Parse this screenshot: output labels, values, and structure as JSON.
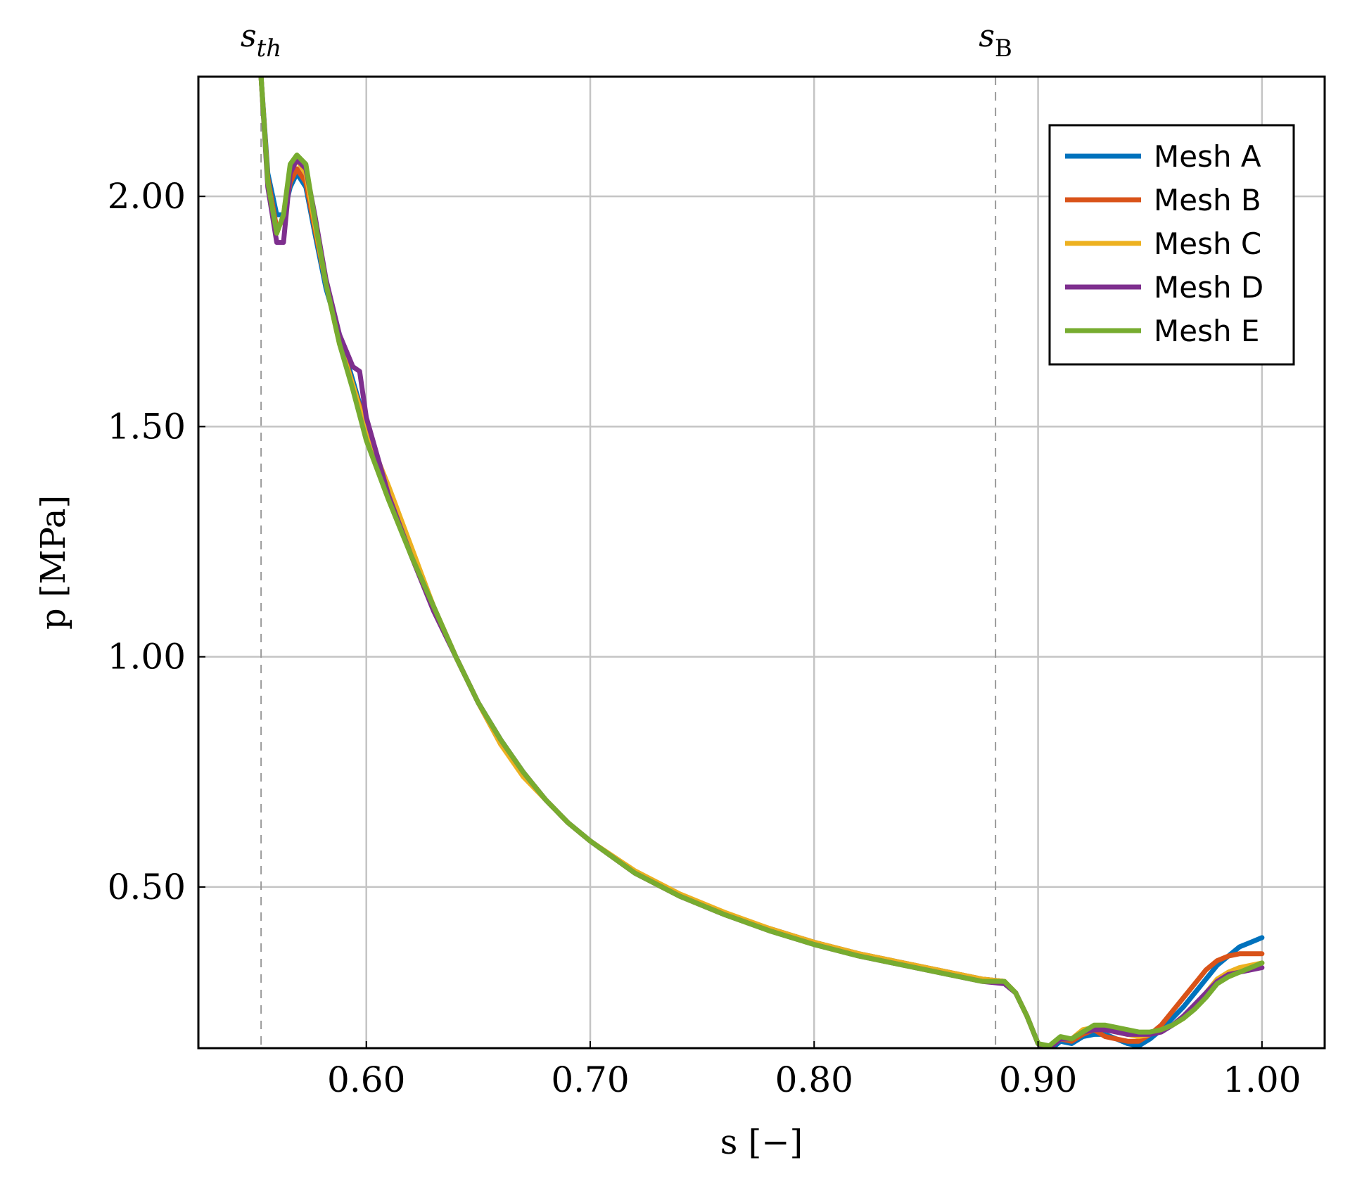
{
  "chart_data": {
    "type": "line",
    "xlabel": "s [−]",
    "ylabel": "p [MPa]",
    "xlim": [
      0.525,
      1.028
    ],
    "ylim": [
      0.15,
      2.26
    ],
    "xticks": [
      0.6,
      0.7,
      0.8,
      0.9,
      1.0
    ],
    "xtick_labels": [
      "0.60",
      "0.70",
      "0.80",
      "0.90",
      "1.00"
    ],
    "yticks": [
      0.5,
      1.0,
      1.5,
      2.0
    ],
    "ytick_labels": [
      "0.50",
      "1.00",
      "1.50",
      "2.00"
    ],
    "grid": true,
    "legend_position": "top-right",
    "markers": [
      {
        "label": "s",
        "sub": "th",
        "x": 0.553
      },
      {
        "label": "s",
        "sub": "B",
        "x": 0.881
      }
    ],
    "series": [
      {
        "name": "Mesh A",
        "color": "#0072BD",
        "x": [
          0.553,
          0.556,
          0.56,
          0.563,
          0.566,
          0.569,
          0.573,
          0.577,
          0.582,
          0.588,
          0.594,
          0.6,
          0.61,
          0.62,
          0.63,
          0.64,
          0.65,
          0.66,
          0.67,
          0.68,
          0.69,
          0.7,
          0.72,
          0.74,
          0.76,
          0.78,
          0.8,
          0.82,
          0.84,
          0.86,
          0.875,
          0.885,
          0.89,
          0.895,
          0.9,
          0.905,
          0.91,
          0.915,
          0.92,
          0.925,
          0.93,
          0.935,
          0.94,
          0.945,
          0.95,
          0.955,
          0.96,
          0.965,
          0.97,
          0.975,
          0.98,
          0.985,
          0.99,
          0.995,
          1.0
        ],
        "y": [
          2.26,
          2.05,
          1.96,
          1.96,
          2.02,
          2.05,
          2.02,
          1.92,
          1.8,
          1.7,
          1.6,
          1.5,
          1.35,
          1.23,
          1.11,
          1.0,
          0.9,
          0.82,
          0.75,
          0.69,
          0.64,
          0.6,
          0.53,
          0.48,
          0.44,
          0.41,
          0.38,
          0.355,
          0.335,
          0.315,
          0.3,
          0.295,
          0.27,
          0.22,
          0.16,
          0.145,
          0.165,
          0.16,
          0.175,
          0.18,
          0.18,
          0.17,
          0.16,
          0.155,
          0.17,
          0.19,
          0.215,
          0.24,
          0.27,
          0.3,
          0.33,
          0.35,
          0.37,
          0.38,
          0.39
        ]
      },
      {
        "name": "Mesh B",
        "color": "#D95319",
        "x": [
          0.553,
          0.556,
          0.56,
          0.563,
          0.566,
          0.569,
          0.573,
          0.577,
          0.582,
          0.588,
          0.594,
          0.6,
          0.61,
          0.62,
          0.63,
          0.64,
          0.65,
          0.66,
          0.67,
          0.68,
          0.69,
          0.7,
          0.72,
          0.74,
          0.76,
          0.78,
          0.8,
          0.82,
          0.84,
          0.86,
          0.875,
          0.885,
          0.89,
          0.895,
          0.9,
          0.905,
          0.91,
          0.915,
          0.92,
          0.925,
          0.93,
          0.935,
          0.94,
          0.945,
          0.95,
          0.955,
          0.96,
          0.965,
          0.97,
          0.975,
          0.98,
          0.985,
          0.99,
          0.995,
          1.0
        ],
        "y": [
          2.26,
          2.04,
          1.93,
          1.95,
          2.03,
          2.06,
          2.03,
          1.93,
          1.81,
          1.69,
          1.59,
          1.5,
          1.36,
          1.23,
          1.11,
          1.0,
          0.9,
          0.81,
          0.75,
          0.69,
          0.64,
          0.6,
          0.53,
          0.48,
          0.44,
          0.41,
          0.38,
          0.355,
          0.335,
          0.315,
          0.3,
          0.295,
          0.27,
          0.22,
          0.16,
          0.15,
          0.17,
          0.165,
          0.18,
          0.19,
          0.175,
          0.17,
          0.165,
          0.165,
          0.18,
          0.2,
          0.23,
          0.26,
          0.29,
          0.32,
          0.34,
          0.35,
          0.355,
          0.355,
          0.355
        ]
      },
      {
        "name": "Mesh C",
        "color": "#EDB120",
        "x": [
          0.553,
          0.556,
          0.56,
          0.563,
          0.566,
          0.569,
          0.573,
          0.577,
          0.582,
          0.588,
          0.594,
          0.6,
          0.61,
          0.62,
          0.63,
          0.64,
          0.65,
          0.66,
          0.67,
          0.68,
          0.69,
          0.7,
          0.72,
          0.74,
          0.76,
          0.78,
          0.8,
          0.82,
          0.84,
          0.86,
          0.875,
          0.885,
          0.89,
          0.895,
          0.9,
          0.905,
          0.91,
          0.915,
          0.92,
          0.925,
          0.93,
          0.935,
          0.94,
          0.945,
          0.95,
          0.955,
          0.96,
          0.965,
          0.97,
          0.975,
          0.98,
          0.985,
          0.99,
          0.995,
          1.0
        ],
        "y": [
          2.26,
          2.03,
          1.92,
          1.96,
          2.06,
          2.08,
          2.05,
          1.94,
          1.81,
          1.68,
          1.59,
          1.49,
          1.37,
          1.24,
          1.11,
          1.0,
          0.9,
          0.81,
          0.74,
          0.69,
          0.64,
          0.6,
          0.535,
          0.485,
          0.445,
          0.41,
          0.38,
          0.355,
          0.335,
          0.315,
          0.3,
          0.295,
          0.27,
          0.22,
          0.16,
          0.15,
          0.17,
          0.17,
          0.19,
          0.195,
          0.19,
          0.185,
          0.18,
          0.175,
          0.18,
          0.19,
          0.2,
          0.215,
          0.24,
          0.27,
          0.3,
          0.315,
          0.325,
          0.33,
          0.335
        ]
      },
      {
        "name": "Mesh D",
        "color": "#7E2F8E",
        "x": [
          0.553,
          0.556,
          0.56,
          0.563,
          0.566,
          0.569,
          0.573,
          0.577,
          0.582,
          0.588,
          0.594,
          0.597,
          0.6,
          0.61,
          0.62,
          0.63,
          0.64,
          0.65,
          0.66,
          0.67,
          0.68,
          0.69,
          0.7,
          0.72,
          0.74,
          0.76,
          0.78,
          0.8,
          0.82,
          0.84,
          0.86,
          0.875,
          0.885,
          0.89,
          0.895,
          0.9,
          0.905,
          0.91,
          0.915,
          0.92,
          0.925,
          0.93,
          0.935,
          0.94,
          0.945,
          0.95,
          0.955,
          0.96,
          0.965,
          0.97,
          0.975,
          0.98,
          0.985,
          0.99,
          0.995,
          1.0
        ],
        "y": [
          2.26,
          2.02,
          1.9,
          1.9,
          2.05,
          2.08,
          2.06,
          1.96,
          1.82,
          1.7,
          1.63,
          1.62,
          1.52,
          1.35,
          1.22,
          1.1,
          1.0,
          0.9,
          0.82,
          0.75,
          0.69,
          0.64,
          0.6,
          0.53,
          0.48,
          0.44,
          0.405,
          0.375,
          0.35,
          0.33,
          0.31,
          0.295,
          0.29,
          0.27,
          0.22,
          0.16,
          0.15,
          0.17,
          0.17,
          0.185,
          0.19,
          0.19,
          0.185,
          0.18,
          0.18,
          0.18,
          0.185,
          0.2,
          0.22,
          0.245,
          0.27,
          0.295,
          0.31,
          0.315,
          0.32,
          0.325
        ]
      },
      {
        "name": "Mesh E",
        "color": "#77AC30",
        "x": [
          0.553,
          0.556,
          0.56,
          0.563,
          0.566,
          0.569,
          0.573,
          0.577,
          0.582,
          0.588,
          0.594,
          0.6,
          0.61,
          0.62,
          0.63,
          0.64,
          0.65,
          0.66,
          0.67,
          0.68,
          0.69,
          0.7,
          0.72,
          0.74,
          0.76,
          0.78,
          0.8,
          0.82,
          0.84,
          0.86,
          0.875,
          0.885,
          0.89,
          0.895,
          0.9,
          0.905,
          0.91,
          0.915,
          0.92,
          0.925,
          0.93,
          0.935,
          0.94,
          0.945,
          0.95,
          0.955,
          0.96,
          0.965,
          0.97,
          0.975,
          0.98,
          0.985,
          0.99,
          0.995,
          1.0
        ],
        "y": [
          2.26,
          2.03,
          1.92,
          1.96,
          2.07,
          2.09,
          2.07,
          1.95,
          1.81,
          1.68,
          1.58,
          1.47,
          1.34,
          1.22,
          1.11,
          1.0,
          0.9,
          0.82,
          0.75,
          0.69,
          0.64,
          0.6,
          0.53,
          0.48,
          0.44,
          0.405,
          0.375,
          0.35,
          0.33,
          0.31,
          0.295,
          0.295,
          0.27,
          0.22,
          0.16,
          0.155,
          0.175,
          0.17,
          0.185,
          0.2,
          0.2,
          0.195,
          0.19,
          0.185,
          0.185,
          0.19,
          0.2,
          0.215,
          0.235,
          0.26,
          0.29,
          0.305,
          0.315,
          0.325,
          0.335
        ]
      }
    ]
  }
}
